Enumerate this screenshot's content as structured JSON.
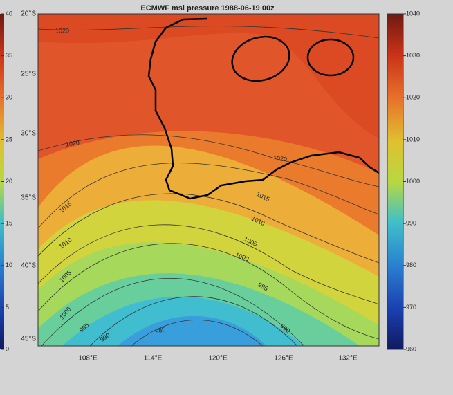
{
  "title": "ECMWF msl pressure  1988-06-19 00z",
  "latitude_labels": [
    "20°S",
    "25°S",
    "30°S",
    "35°S",
    "40°S",
    "45°S"
  ],
  "longitude_labels": [
    "108°E",
    "114°E",
    "120°E",
    "126°E",
    "132°E"
  ],
  "colorbar": {
    "limits": [
      960,
      1040
    ],
    "ticks": [
      960,
      970,
      980,
      990,
      1000,
      1010,
      1020,
      1030,
      1040
    ]
  },
  "left_colorbar": {
    "limits": [
      0,
      40
    ],
    "ticks": [
      0,
      5,
      10,
      15,
      20,
      25,
      30,
      35,
      40
    ]
  },
  "contour_labels": [
    "1020",
    "1020",
    "1020",
    "1015",
    "1015",
    "1010",
    "1010",
    "1005",
    "1005",
    "1000",
    "1000",
    "995",
    "995",
    "990",
    "990",
    "985"
  ]
}
